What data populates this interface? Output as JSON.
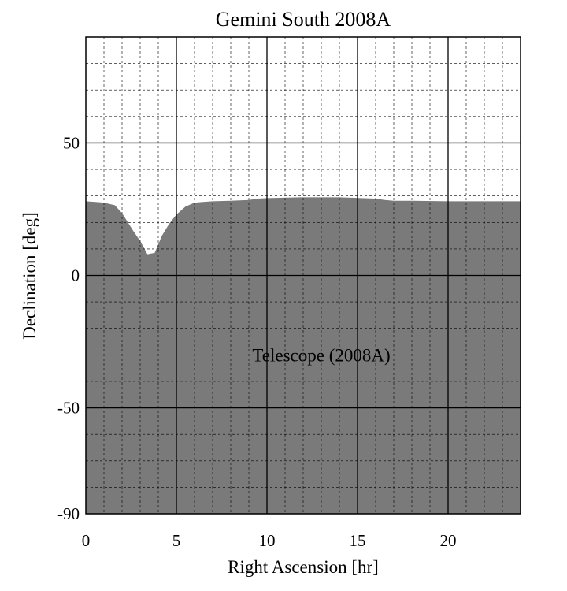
{
  "chart_data": {
    "type": "area",
    "title": "Gemini South 2008A",
    "xlabel": "Right Ascension [hr]",
    "ylabel": "Declination [deg]",
    "xlim": [
      0,
      24
    ],
    "ylim": [
      -90,
      90
    ],
    "x_ticks": [
      0,
      5,
      10,
      15,
      20
    ],
    "x_tick_labels": [
      "0",
      "5",
      "10",
      "15",
      "20"
    ],
    "y_ticks": [
      -90,
      -50,
      0,
      50
    ],
    "y_tick_labels": [
      "-90",
      "-50",
      "0",
      "50"
    ],
    "grid": true,
    "fill_color": "#7a7a7a",
    "series": [
      {
        "name": "Telescope (2008A)",
        "x": [
          0,
          1.0,
          1.6,
          2.0,
          2.6,
          3.0,
          3.4,
          3.8,
          4.2,
          4.6,
          5.0,
          5.5,
          6.0,
          7.0,
          8.0,
          9.0,
          9.5,
          10.0,
          12.0,
          14.0,
          16.0,
          16.5,
          17.0,
          18.0,
          20.0,
          24.0
        ],
        "y": [
          28,
          27.5,
          26.5,
          23.5,
          17,
          13,
          8,
          8.5,
          15,
          19.5,
          23,
          26,
          27.5,
          28,
          28.2,
          28.5,
          29,
          29.2,
          29.5,
          29.5,
          29,
          28.5,
          28.2,
          28.2,
          28,
          28
        ]
      }
    ],
    "annotations": [
      {
        "text": "Telescope (2008A)",
        "x": 13.0,
        "y": -30
      }
    ]
  }
}
